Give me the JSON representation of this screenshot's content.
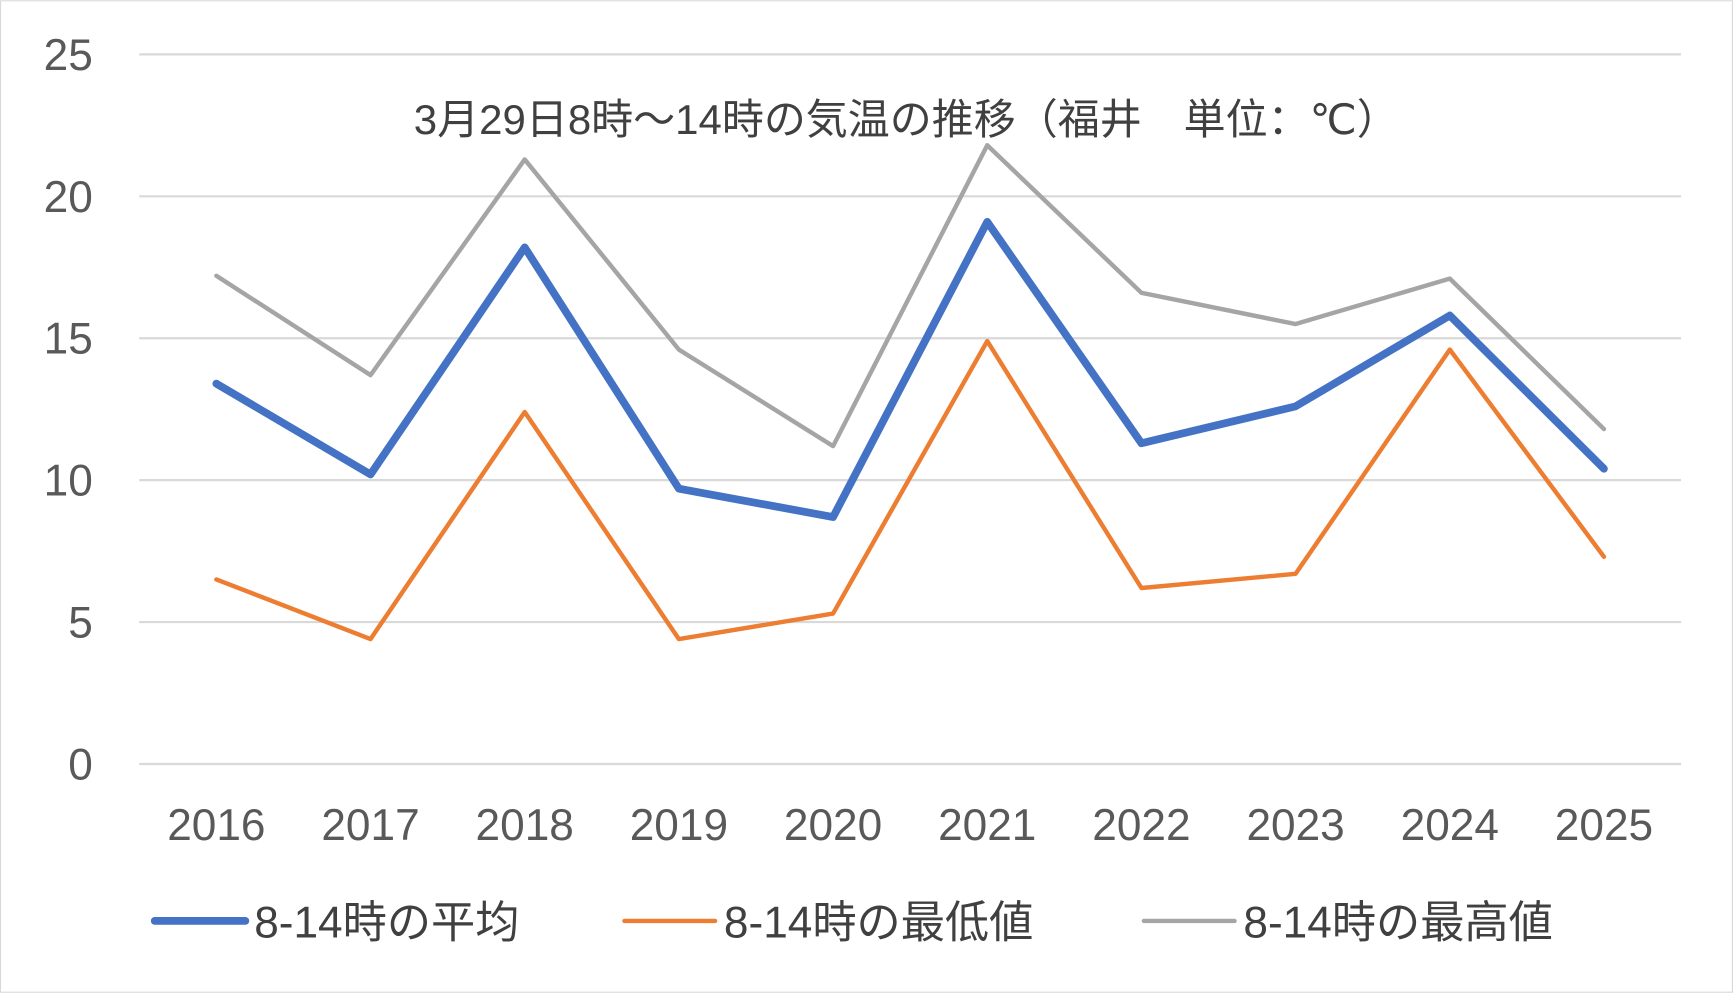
{
  "chart_data": {
    "type": "line",
    "title": "3月29日8時～14時の気温の推移（福井　単位：℃）",
    "xlabel": "",
    "ylabel": "",
    "categories": [
      "2016",
      "2017",
      "2018",
      "2019",
      "2020",
      "2021",
      "2022",
      "2023",
      "2024",
      "2025"
    ],
    "ylim": [
      0,
      25
    ],
    "yticks": [
      "0",
      "5",
      "10",
      "15",
      "20",
      "25"
    ],
    "grid": true,
    "legend_position": "bottom",
    "series": [
      {
        "name": "8-14時の平均",
        "color": "#4472C4",
        "values": [
          13.4,
          10.2,
          18.2,
          9.7,
          8.7,
          19.1,
          11.3,
          12.6,
          15.8,
          10.4
        ]
      },
      {
        "name": "8-14時の最低値",
        "color": "#ED7D31",
        "values": [
          6.5,
          4.4,
          12.4,
          4.4,
          5.3,
          14.9,
          6.2,
          6.7,
          14.6,
          7.3
        ]
      },
      {
        "name": "8-14時の最高値",
        "color": "#A5A5A5",
        "values": [
          17.2,
          13.7,
          21.3,
          14.6,
          11.2,
          21.8,
          16.6,
          15.5,
          17.1,
          11.8
        ]
      }
    ]
  }
}
